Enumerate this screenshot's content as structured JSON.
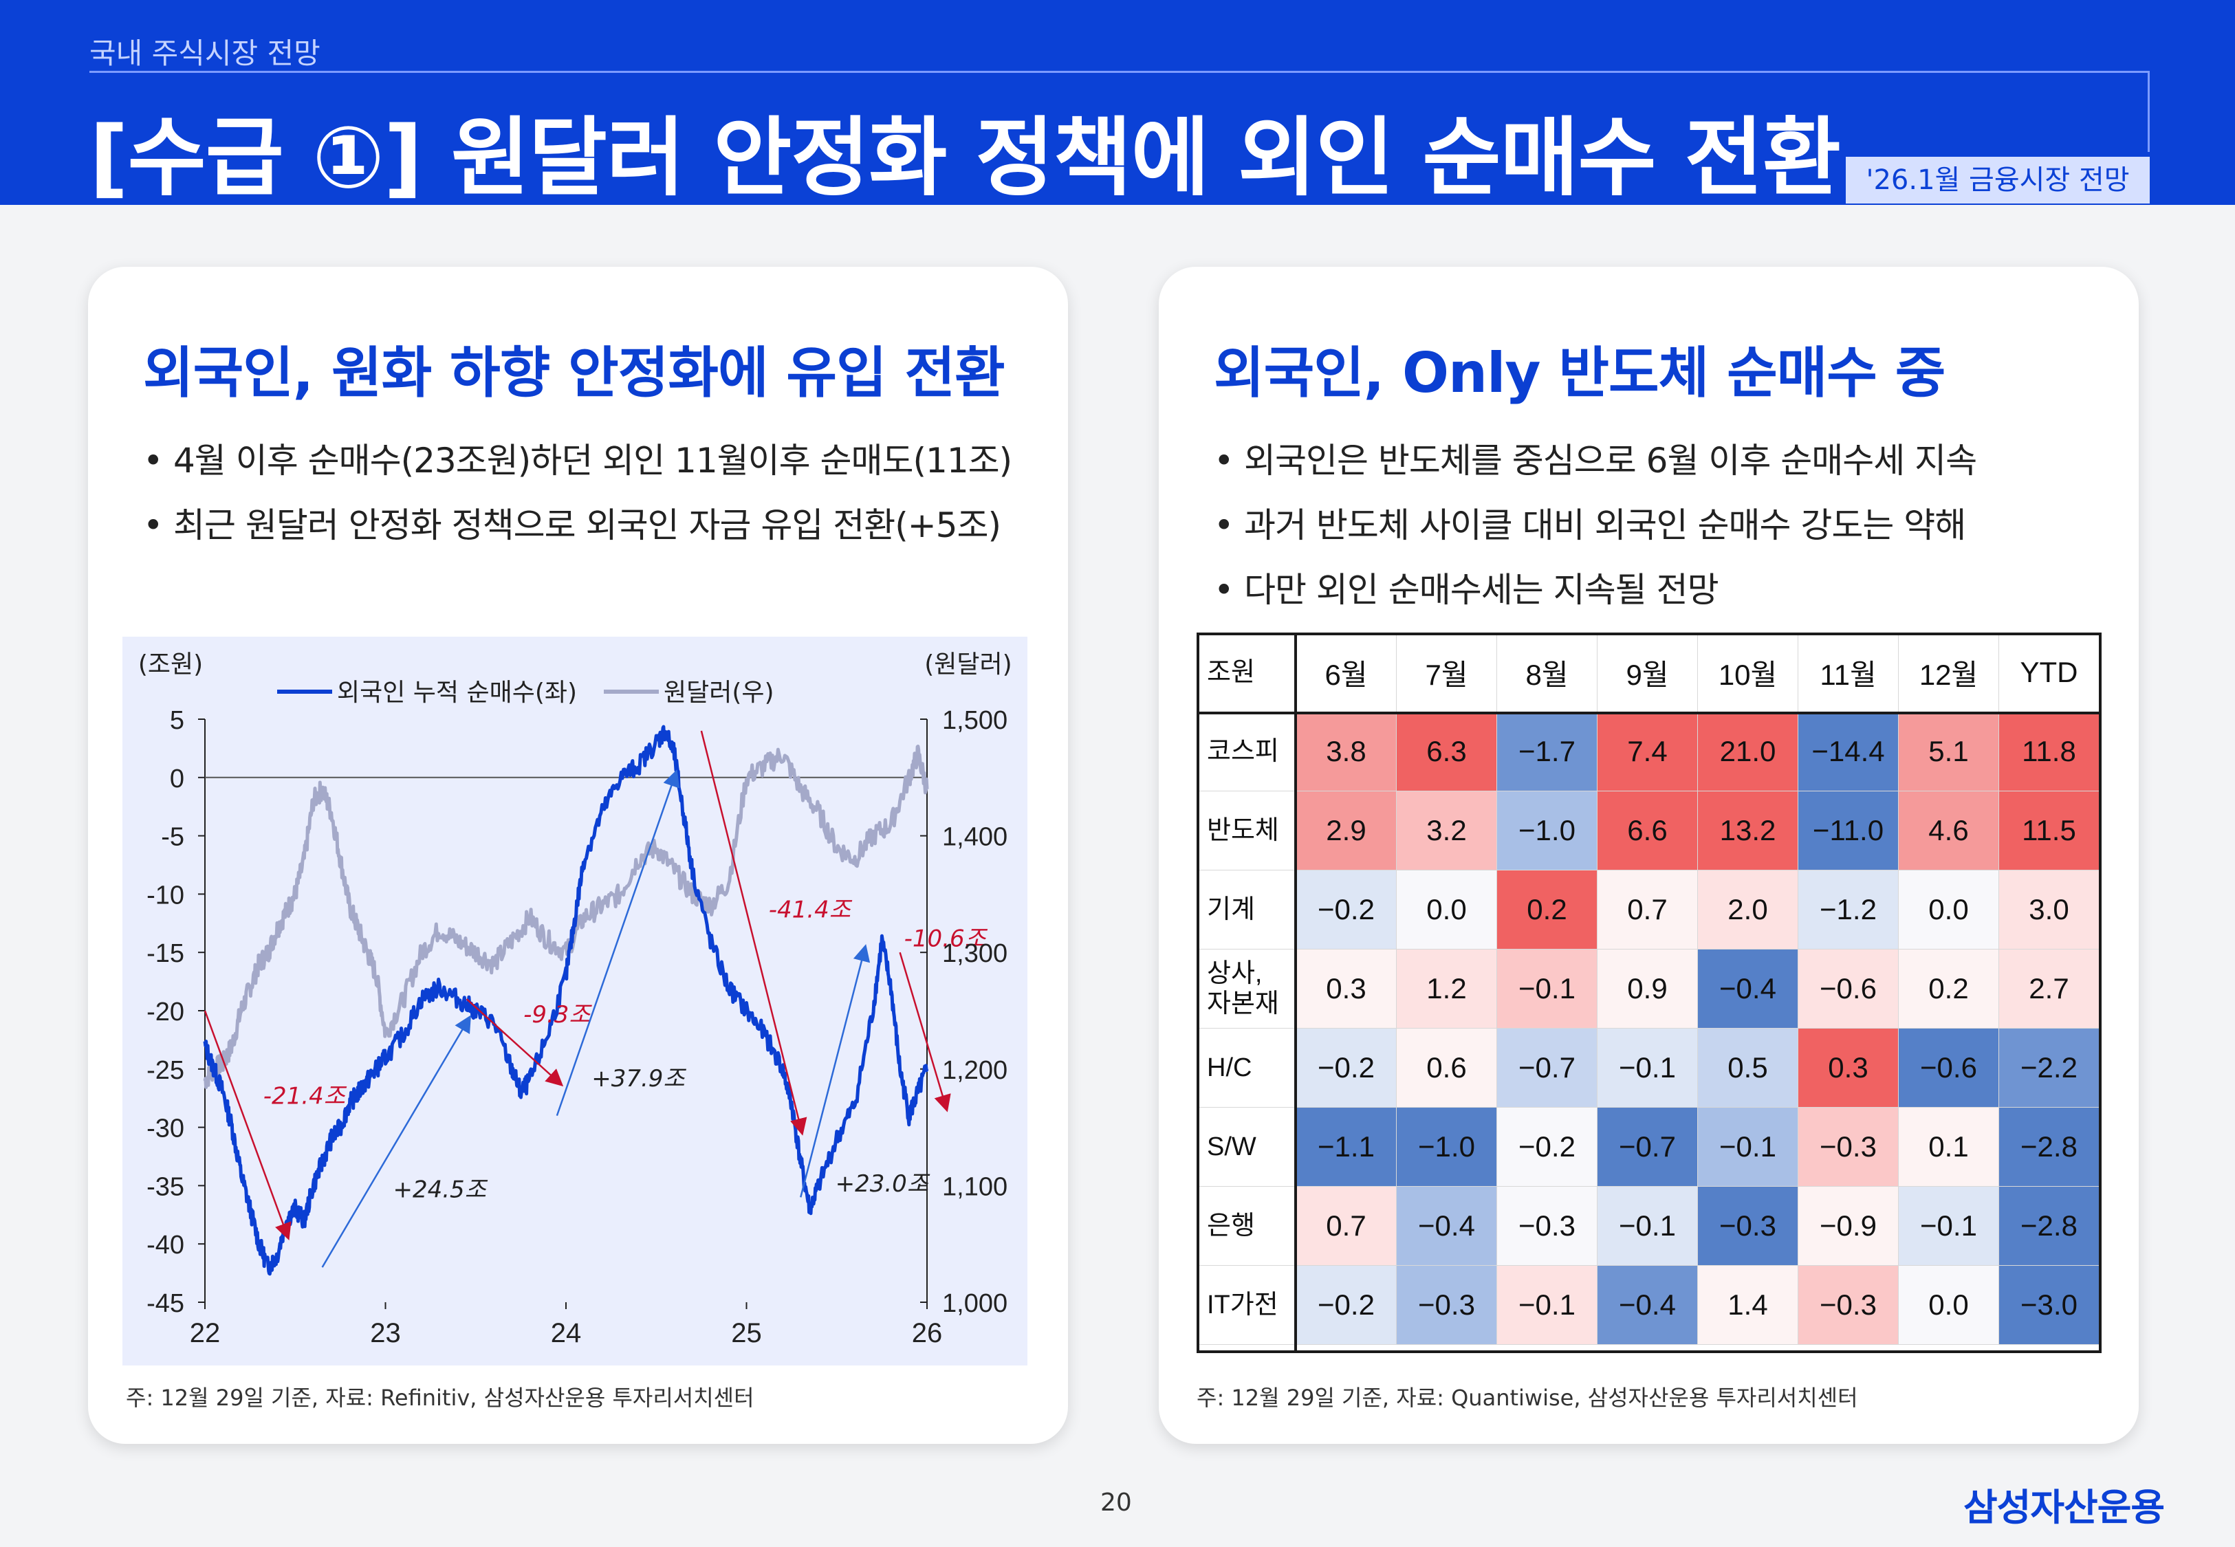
{
  "header": {
    "breadcrumb": "국내 주식시장 전망",
    "title": "[수급 ①] 원달러 안정화 정책에 외인 순매수 전환",
    "date_tag": "'26.1월 금융시장 전망"
  },
  "left_panel": {
    "title": "외국인, 원화 하향 안정화에 유입 전환",
    "bullets": [
      "4월 이후 순매수(23조원)하던 외인 11월이후 순매도(11조)",
      "최근 원달러 안정화 정책으로 외국인 자금 유입 전환(+5조)"
    ],
    "footnote": "주: 12월 29일 기준, 자료: Refinitiv, 삼성자산운용 투자리서치센터"
  },
  "right_panel": {
    "title": "외국인, Only 반도체 순매수 중",
    "bullets": [
      "외국인은 반도체를 중심으로 6월 이후 순매수세 지속",
      "과거 반도체 사이클 대비 외국인 순매수 강도는 약해",
      "다만 외인 순매수세는 지속될 전망"
    ],
    "footnote": "주: 12월 29일 기준, 자료: Quantiwise, 삼성자산운용 투자리서치센터"
  },
  "page_number": "20",
  "brand": "삼성자산운용",
  "colors": {
    "brand_blue": "#0b41d6",
    "series_foreign": "#0b3fd2",
    "series_fx": "#a4a9c9",
    "annotation_red": "#c8102e",
    "heat_pos_strong": "#f06262",
    "heat_neg_strong": "#5580c8"
  },
  "chart_data": [
    {
      "type": "line",
      "left_axis_unit": "(조원)",
      "right_axis_unit": "(원달러)",
      "legend_position": "top",
      "x_ticks": [
        "22",
        "23",
        "24",
        "25",
        "26"
      ],
      "y_left_ticks": [
        "5",
        "0",
        "-5",
        "-10",
        "-15",
        "-20",
        "-25",
        "-30",
        "-35",
        "-40",
        "-45"
      ],
      "y_right_ticks": [
        "1,500",
        "1,400",
        "1,300",
        "1,200",
        "1,100",
        "1,000"
      ],
      "ylim_left": [
        -45,
        5
      ],
      "ylim_right": [
        1000,
        1500
      ],
      "xlim": [
        2022.0,
        2026.0
      ],
      "zero_line": 0,
      "series": [
        {
          "name": "외국인 누적 순매수(좌)",
          "axis": "left",
          "x": [
            2022.0,
            2022.05,
            2022.1,
            2022.15,
            2022.2,
            2022.25,
            2022.3,
            2022.35,
            2022.4,
            2022.45,
            2022.5,
            2022.55,
            2022.6,
            2022.65,
            2022.7,
            2022.75,
            2022.8,
            2022.85,
            2022.9,
            2022.95,
            2023.0,
            2023.1,
            2023.2,
            2023.3,
            2023.4,
            2023.5,
            2023.6,
            2023.7,
            2023.75,
            2023.8,
            2023.9,
            2024.0,
            2024.05,
            2024.1,
            2024.2,
            2024.3,
            2024.4,
            2024.5,
            2024.55,
            2024.6,
            2024.65,
            2024.7,
            2024.8,
            2024.9,
            2025.0,
            2025.1,
            2025.2,
            2025.25,
            2025.3,
            2025.35,
            2025.4,
            2025.5,
            2025.6,
            2025.7,
            2025.75,
            2025.8,
            2025.85,
            2025.9,
            2025.95,
            2026.0
          ],
          "values": [
            -23,
            -25,
            -27,
            -30,
            -34,
            -37,
            -40,
            -42,
            -41,
            -38,
            -37,
            -38,
            -35,
            -33,
            -31,
            -30,
            -28,
            -27,
            -26,
            -25,
            -24,
            -22,
            -19,
            -18,
            -19,
            -20,
            -21,
            -25,
            -27,
            -26,
            -22,
            -17,
            -12,
            -7,
            -3,
            0,
            1,
            3,
            4,
            2,
            -3,
            -8,
            -14,
            -18,
            -20,
            -22,
            -25,
            -28,
            -33,
            -37,
            -35,
            -31,
            -28,
            -20,
            -14,
            -18,
            -25,
            -29,
            -27,
            -25
          ]
        },
        {
          "name": "원달러(우)",
          "axis": "right",
          "x": [
            2022.0,
            2022.05,
            2022.1,
            2022.15,
            2022.2,
            2022.25,
            2022.3,
            2022.35,
            2022.4,
            2022.45,
            2022.5,
            2022.55,
            2022.6,
            2022.65,
            2022.7,
            2022.75,
            2022.8,
            2022.85,
            2022.9,
            2022.95,
            2023.0,
            2023.1,
            2023.2,
            2023.3,
            2023.4,
            2023.5,
            2023.6,
            2023.7,
            2023.8,
            2023.9,
            2024.0,
            2024.1,
            2024.2,
            2024.3,
            2024.4,
            2024.5,
            2024.6,
            2024.7,
            2024.8,
            2024.9,
            2025.0,
            2025.1,
            2025.2,
            2025.3,
            2025.4,
            2025.5,
            2025.6,
            2025.7,
            2025.8,
            2025.9,
            2025.95,
            2026.0
          ],
          "values": [
            1190,
            1200,
            1205,
            1220,
            1250,
            1270,
            1290,
            1300,
            1320,
            1335,
            1350,
            1380,
            1430,
            1440,
            1420,
            1380,
            1340,
            1320,
            1300,
            1280,
            1230,
            1260,
            1300,
            1320,
            1310,
            1300,
            1290,
            1310,
            1330,
            1310,
            1300,
            1330,
            1340,
            1350,
            1380,
            1390,
            1370,
            1350,
            1340,
            1360,
            1450,
            1460,
            1470,
            1440,
            1420,
            1390,
            1380,
            1400,
            1410,
            1450,
            1470,
            1440
          ]
        }
      ],
      "annotations": [
        {
          "label": "-21.4조",
          "kind": "decline"
        },
        {
          "label": "+24.5조",
          "kind": "rise"
        },
        {
          "label": "-9.3조",
          "kind": "decline"
        },
        {
          "label": "+37.9조",
          "kind": "rise"
        },
        {
          "label": "-41.4조",
          "kind": "decline"
        },
        {
          "label": "+23.0조",
          "kind": "rise"
        },
        {
          "label": "-10.6조",
          "kind": "decline"
        }
      ]
    },
    {
      "type": "heatmap",
      "corner_label": "조원",
      "columns": [
        "6월",
        "7월",
        "8월",
        "9월",
        "10월",
        "11월",
        "12월",
        "YTD"
      ],
      "rows": [
        "코스피",
        "반도체",
        "기계",
        "상사,\n자본재",
        "H/C",
        "S/W",
        "은행",
        "IT가전"
      ],
      "values": [
        [
          "3.8",
          "6.3",
          "-1.7",
          "7.4",
          "21.0",
          "-14.4",
          "5.1",
          "11.8"
        ],
        [
          "2.9",
          "3.2",
          "-1.0",
          "6.6",
          "13.2",
          "-11.0",
          "4.6",
          "11.5"
        ],
        [
          "-0.2",
          "0.0",
          "0.2",
          "0.7",
          "2.0",
          "-1.2",
          "0.0",
          "3.0"
        ],
        [
          "0.3",
          "1.2",
          "-0.1",
          "0.9",
          "-0.4",
          "-0.6",
          "0.2",
          "2.7"
        ],
        [
          "-0.2",
          "0.6",
          "-0.7",
          "-0.1",
          "0.5",
          "0.3",
          "-0.6",
          "-2.2"
        ],
        [
          "-1.1",
          "-1.0",
          "-0.2",
          "-0.7",
          "-0.1",
          "-0.3",
          "0.1",
          "-2.8"
        ],
        [
          "0.7",
          "-0.4",
          "-0.3",
          "-0.1",
          "-0.3",
          "-0.9",
          "-0.1",
          "-2.8"
        ],
        [
          "-0.2",
          "-0.3",
          "-0.1",
          "-0.4",
          "1.4",
          "-0.3",
          "0.0",
          "-3.0"
        ]
      ],
      "cell_colors": [
        [
          "#f59a9a",
          "#f06262",
          "#6f94d2",
          "#f06262",
          "#f06262",
          "#5580c8",
          "#f59a9a",
          "#f06262"
        ],
        [
          "#f59a9a",
          "#fabdbd",
          "#a8bfe6",
          "#f06262",
          "#f06262",
          "#5580c8",
          "#f59a9a",
          "#f06262"
        ],
        [
          "#dde6f5",
          "#f8f8fb",
          "#f06262",
          "#fdf3f3",
          "#fde2e2",
          "#dde6f5",
          "#f8f8fb",
          "#fde2e2"
        ],
        [
          "#fdf3f3",
          "#fde2e2",
          "#fbc8c8",
          "#fdf3f3",
          "#5580c8",
          "#fde2e2",
          "#fdf3f3",
          "#fde2e2"
        ],
        [
          "#dde6f5",
          "#fdf3f3",
          "#c6d5ef",
          "#dde6f5",
          "#c6d5ef",
          "#f06262",
          "#5580c8",
          "#6f94d2"
        ],
        [
          "#5580c8",
          "#5580c8",
          "#f8f8fb",
          "#5580c8",
          "#a8bfe6",
          "#fbc8c8",
          "#fdf3f3",
          "#5580c8"
        ],
        [
          "#fde2e2",
          "#a8bfe6",
          "#f8f8fb",
          "#dde6f5",
          "#5580c8",
          "#fdf3f3",
          "#dde6f5",
          "#5580c8"
        ],
        [
          "#dde6f5",
          "#a8bfe6",
          "#fde2e2",
          "#6f94d2",
          "#fdf3f3",
          "#fbc8c8",
          "#f8f8fb",
          "#5580c8"
        ]
      ]
    }
  ]
}
